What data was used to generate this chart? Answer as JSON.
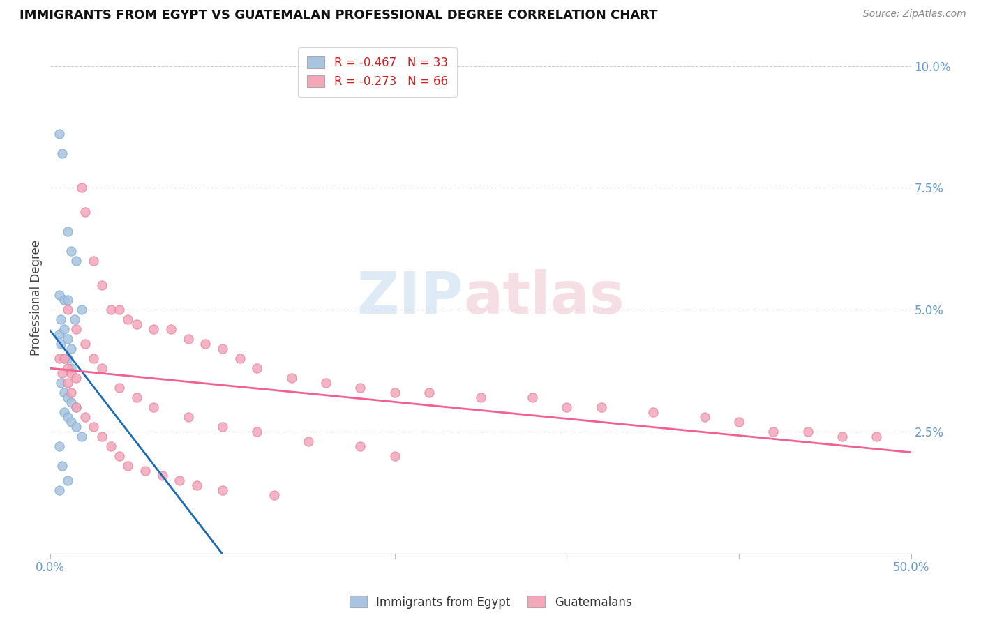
{
  "title": "IMMIGRANTS FROM EGYPT VS GUATEMALAN PROFESSIONAL DEGREE CORRELATION CHART",
  "source": "Source: ZipAtlas.com",
  "ylabel": "Professional Degree",
  "right_yticks": [
    "10.0%",
    "7.5%",
    "5.0%",
    "2.5%"
  ],
  "right_ytick_vals": [
    0.1,
    0.075,
    0.05,
    0.025
  ],
  "legend1_r": "-0.467",
  "legend1_n": "33",
  "legend2_r": "-0.273",
  "legend2_n": "66",
  "egypt_color": "#a8c4e0",
  "egypt_edge": "#7bafd4",
  "guatemala_color": "#f4a7b9",
  "guatemala_edge": "#e87fa0",
  "line_egypt_color": "#1a6bb5",
  "line_guatemala_color": "#f06090",
  "egypt_x": [
    0.005,
    0.007,
    0.01,
    0.012,
    0.015,
    0.018,
    0.005,
    0.008,
    0.01,
    0.014,
    0.005,
    0.006,
    0.008,
    0.01,
    0.012,
    0.006,
    0.008,
    0.01,
    0.012,
    0.015,
    0.008,
    0.01,
    0.012,
    0.015,
    0.018,
    0.005,
    0.007,
    0.01,
    0.005,
    0.006,
    0.008,
    0.01,
    0.012
  ],
  "egypt_y": [
    0.086,
    0.082,
    0.066,
    0.062,
    0.06,
    0.05,
    0.053,
    0.052,
    0.052,
    0.048,
    0.045,
    0.043,
    0.04,
    0.04,
    0.038,
    0.035,
    0.033,
    0.032,
    0.031,
    0.03,
    0.029,
    0.028,
    0.027,
    0.026,
    0.024,
    0.022,
    0.018,
    0.015,
    0.013,
    0.048,
    0.046,
    0.044,
    0.042
  ],
  "guatemala_x": [
    0.005,
    0.008,
    0.01,
    0.012,
    0.015,
    0.018,
    0.02,
    0.025,
    0.03,
    0.035,
    0.04,
    0.045,
    0.05,
    0.06,
    0.07,
    0.08,
    0.09,
    0.1,
    0.11,
    0.12,
    0.14,
    0.16,
    0.18,
    0.2,
    0.22,
    0.25,
    0.28,
    0.3,
    0.32,
    0.35,
    0.38,
    0.4,
    0.42,
    0.44,
    0.46,
    0.48,
    0.01,
    0.015,
    0.02,
    0.025,
    0.03,
    0.04,
    0.05,
    0.06,
    0.08,
    0.1,
    0.12,
    0.15,
    0.18,
    0.007,
    0.01,
    0.012,
    0.015,
    0.02,
    0.025,
    0.03,
    0.035,
    0.04,
    0.045,
    0.055,
    0.065,
    0.075,
    0.085,
    0.1,
    0.13,
    0.2
  ],
  "guatemala_y": [
    0.04,
    0.04,
    0.038,
    0.037,
    0.036,
    0.075,
    0.07,
    0.06,
    0.055,
    0.05,
    0.05,
    0.048,
    0.047,
    0.046,
    0.046,
    0.044,
    0.043,
    0.042,
    0.04,
    0.038,
    0.036,
    0.035,
    0.034,
    0.033,
    0.033,
    0.032,
    0.032,
    0.03,
    0.03,
    0.029,
    0.028,
    0.027,
    0.025,
    0.025,
    0.024,
    0.024,
    0.05,
    0.046,
    0.043,
    0.04,
    0.038,
    0.034,
    0.032,
    0.03,
    0.028,
    0.026,
    0.025,
    0.023,
    0.022,
    0.037,
    0.035,
    0.033,
    0.03,
    0.028,
    0.026,
    0.024,
    0.022,
    0.02,
    0.018,
    0.017,
    0.016,
    0.015,
    0.014,
    0.013,
    0.012,
    0.02
  ],
  "xlim": [
    0.0,
    0.5
  ],
  "ylim": [
    0.0,
    0.105
  ],
  "figsize": [
    14.06,
    8.92
  ],
  "dpi": 100,
  "egypt_line_x": [
    0.0,
    0.25
  ],
  "guatemala_line_x": [
    0.0,
    0.5
  ]
}
